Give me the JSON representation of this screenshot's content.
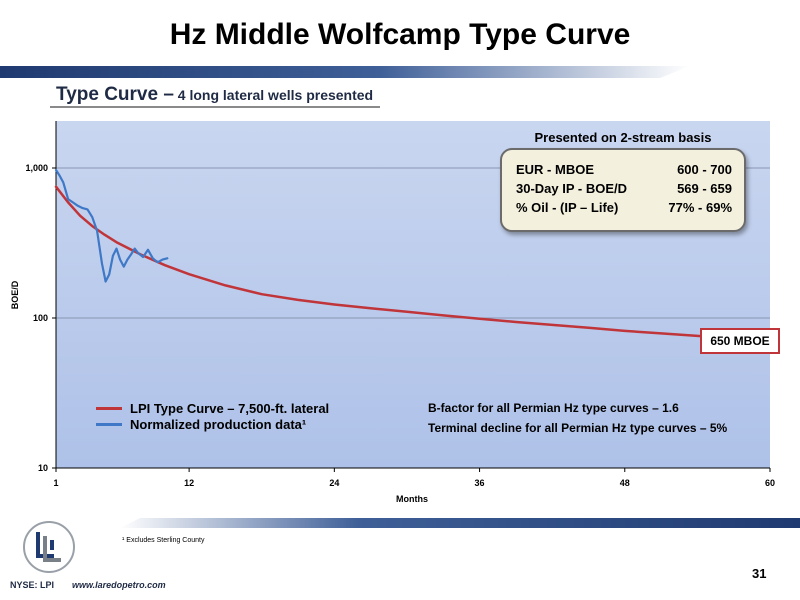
{
  "slide": {
    "title": "Hz Middle Wolfcamp Type Curve",
    "subtitle_main": "Type Curve –",
    "subtitle_detail": " 4 long lateral wells presented",
    "page_number": "31",
    "ticker": "NYSE: LPI",
    "website": "www.laredopetro.com",
    "footnote": "¹ Excludes Sterling County",
    "logo_icon": "lpi-logo-icon",
    "colors": {
      "brand_navy": "#1f3a70",
      "type_curve": "#c0353a",
      "production": "#3f78c6"
    }
  },
  "info_box": {
    "header": "Presented on 2-stream basis",
    "rows": [
      {
        "label": "EUR - MBOE",
        "value": "600 - 700"
      },
      {
        "label": "30-Day IP - BOE/D",
        "value": "569 - 659"
      },
      {
        "label": "% Oil - (IP – Life)",
        "value": "77% - 69%"
      }
    ]
  },
  "end_label": "650 MBOE",
  "legend": [
    {
      "label": "LPI Type Curve – 7,500-ft. lateral",
      "color": "#c0353a"
    },
    {
      "label": "Normalized production data¹",
      "color": "#3f78c6"
    }
  ],
  "notes": [
    "B-factor for all Permian Hz type curves – 1.6",
    "Terminal decline for all Permian Hz type curves – 5%"
  ],
  "chart_data": {
    "type": "line",
    "xlabel": "Months",
    "ylabel": "BOE/D",
    "xlim": [
      1,
      60
    ],
    "ylim": [
      10,
      2000
    ],
    "yscale": "log",
    "xticks": [
      "1",
      "12",
      "24",
      "36",
      "48",
      "60"
    ],
    "yticks": [
      "10",
      "100",
      "1,000"
    ],
    "grid": "horizontal",
    "legend_position": "bottom-left",
    "series": [
      {
        "name": "LPI Type Curve – 7,500-ft. lateral",
        "color": "#c0353a",
        "x": [
          1,
          2,
          3,
          4,
          5,
          6,
          8,
          10,
          12,
          15,
          18,
          21,
          24,
          27,
          30,
          33,
          36,
          39,
          42,
          45,
          48,
          51,
          54,
          55
        ],
        "y": [
          750,
          590,
          480,
          410,
          360,
          320,
          265,
          225,
          196,
          165,
          144,
          132,
          123,
          116,
          110,
          104,
          99,
          94,
          90,
          86,
          82,
          79,
          76,
          75
        ]
      },
      {
        "name": "Normalized production data¹",
        "color": "#3f78c6",
        "x": [
          1,
          1.3,
          1.6,
          2,
          2.4,
          2.8,
          3.2,
          3.6,
          4.0,
          4.4,
          4.8,
          5.1,
          5.4,
          5.7,
          6.0,
          6.3,
          6.6,
          6.9,
          7.2,
          7.5,
          7.8,
          8.2,
          8.6,
          9.0,
          9.4,
          9.8,
          10.2
        ],
        "y": [
          970,
          890,
          800,
          620,
          590,
          560,
          540,
          530,
          470,
          380,
          230,
          175,
          195,
          260,
          290,
          245,
          220,
          245,
          265,
          290,
          270,
          255,
          285,
          250,
          235,
          245,
          250
        ]
      }
    ]
  }
}
